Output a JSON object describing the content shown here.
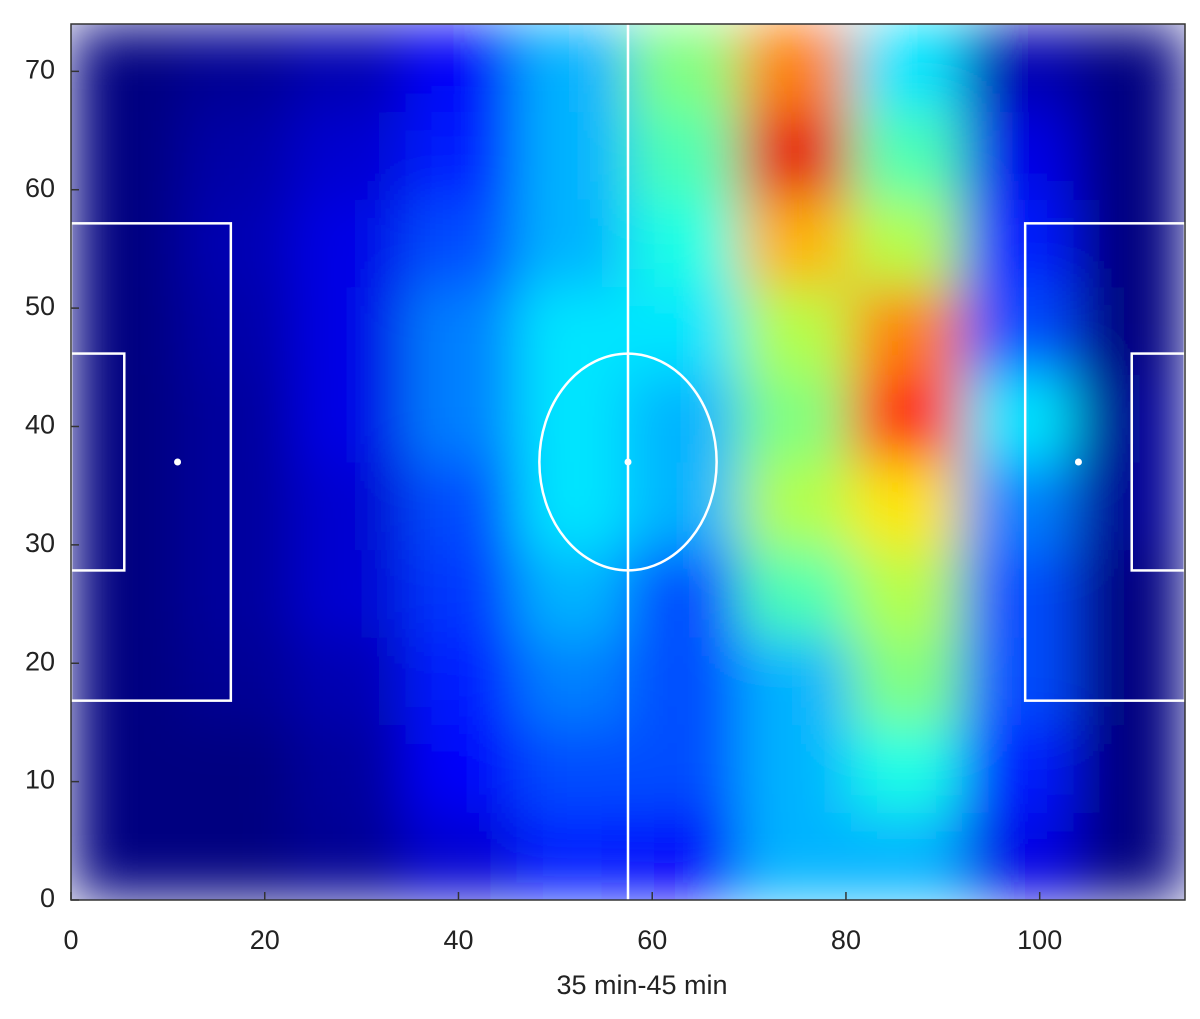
{
  "chart_data": {
    "type": "heatmap",
    "xlabel": "35 min-45 min",
    "xlim": [
      0,
      115
    ],
    "ylim": [
      0,
      74
    ],
    "xticks": [
      0,
      20,
      40,
      60,
      80,
      100
    ],
    "yticks": [
      0,
      10,
      20,
      30,
      40,
      50,
      60,
      70
    ],
    "clim": [
      0,
      1
    ],
    "colormap": "jet",
    "xbins": [
      0,
      11.5,
      23,
      34.5,
      46,
      57.5,
      69,
      80.5,
      92,
      103.5,
      115
    ],
    "ybins": [
      0,
      7.4,
      14.8,
      22.2,
      29.6,
      37,
      44.4,
      51.8,
      59.2,
      66.6,
      74
    ],
    "values": [
      [
        0,
        0,
        0.02,
        0.08,
        0.15,
        0.12,
        0.3,
        0.3,
        0.1,
        0
      ],
      [
        0,
        0,
        0.03,
        0.12,
        0.2,
        0.2,
        0.3,
        0.4,
        0.15,
        0
      ],
      [
        0,
        0.02,
        0.05,
        0.15,
        0.25,
        0.2,
        0.3,
        0.5,
        0.2,
        0
      ],
      [
        0,
        0.03,
        0.08,
        0.18,
        0.3,
        0.2,
        0.45,
        0.55,
        0.2,
        0
      ],
      [
        0,
        0.03,
        0.08,
        0.2,
        0.35,
        0.3,
        0.55,
        0.65,
        0.25,
        0.02
      ],
      [
        0,
        0.03,
        0.1,
        0.25,
        0.35,
        0.3,
        0.5,
        0.85,
        0.35,
        0.02
      ],
      [
        0,
        0.04,
        0.1,
        0.25,
        0.35,
        0.35,
        0.55,
        0.75,
        0.2,
        0
      ],
      [
        0,
        0.05,
        0.1,
        0.2,
        0.3,
        0.4,
        0.7,
        0.55,
        0.15,
        0
      ],
      [
        0,
        0.04,
        0.08,
        0.15,
        0.3,
        0.45,
        0.9,
        0.45,
        0.1,
        0
      ],
      [
        0,
        0.02,
        0.05,
        0.12,
        0.3,
        0.5,
        0.75,
        0.35,
        0.05,
        0
      ]
    ]
  }
}
